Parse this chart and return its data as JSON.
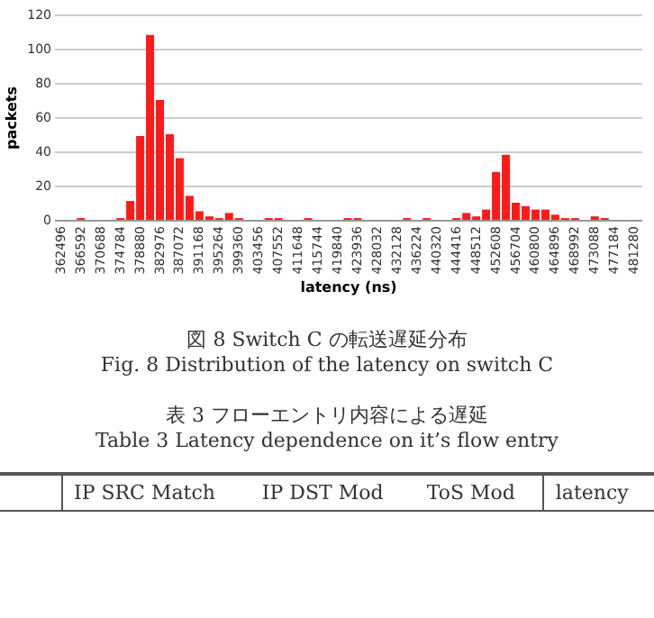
{
  "chart_data": {
    "type": "bar",
    "xlabel": "latency (ns)",
    "ylabel": "packets",
    "categories": [
      "362496",
      null,
      "366592",
      null,
      "370688",
      null,
      "374784",
      null,
      "378880",
      null,
      "382976",
      null,
      "387072",
      null,
      "391168",
      null,
      "395264",
      null,
      "399360",
      null,
      "403456",
      null,
      "407552",
      null,
      "411648",
      null,
      "415744",
      null,
      "419840",
      null,
      "423936",
      null,
      "428032",
      null,
      "432128",
      null,
      "436224",
      null,
      "440320",
      null,
      "444416",
      null,
      "448512",
      null,
      "452608",
      null,
      "456704",
      null,
      "460800",
      null,
      "464896",
      null,
      "468992",
      null,
      "473088",
      null,
      "477184",
      null,
      "481280"
    ],
    "values": [
      0,
      0,
      1,
      0,
      0,
      0,
      1,
      11,
      49,
      108,
      70,
      50,
      36,
      14,
      5,
      2,
      1,
      4,
      1,
      0,
      0,
      1,
      1,
      0,
      0,
      1,
      0,
      0,
      0,
      1,
      1,
      0,
      0,
      0,
      0,
      1,
      0,
      1,
      0,
      0,
      1,
      4,
      2,
      6,
      28,
      38,
      10,
      8,
      6,
      6,
      3,
      1,
      1,
      0,
      2,
      1,
      0,
      0,
      0
    ],
    "color": "#ff1a1a",
    "ylim": [
      0,
      120
    ],
    "yticks": [
      0,
      20,
      40,
      60,
      80,
      100,
      120
    ],
    "grid": "y",
    "annotations": [
      "図 8 Switch C の転送遅延分布",
      "Fig. 8 Distribution of the latency on switch C",
      "表 3 フローエントリ内容による遅延",
      "Table 3 Latency dependence on it’s flow entry",
      "IP SRC Match",
      "IP DST Mod",
      "ToS Mod",
      "latency"
    ]
  }
}
